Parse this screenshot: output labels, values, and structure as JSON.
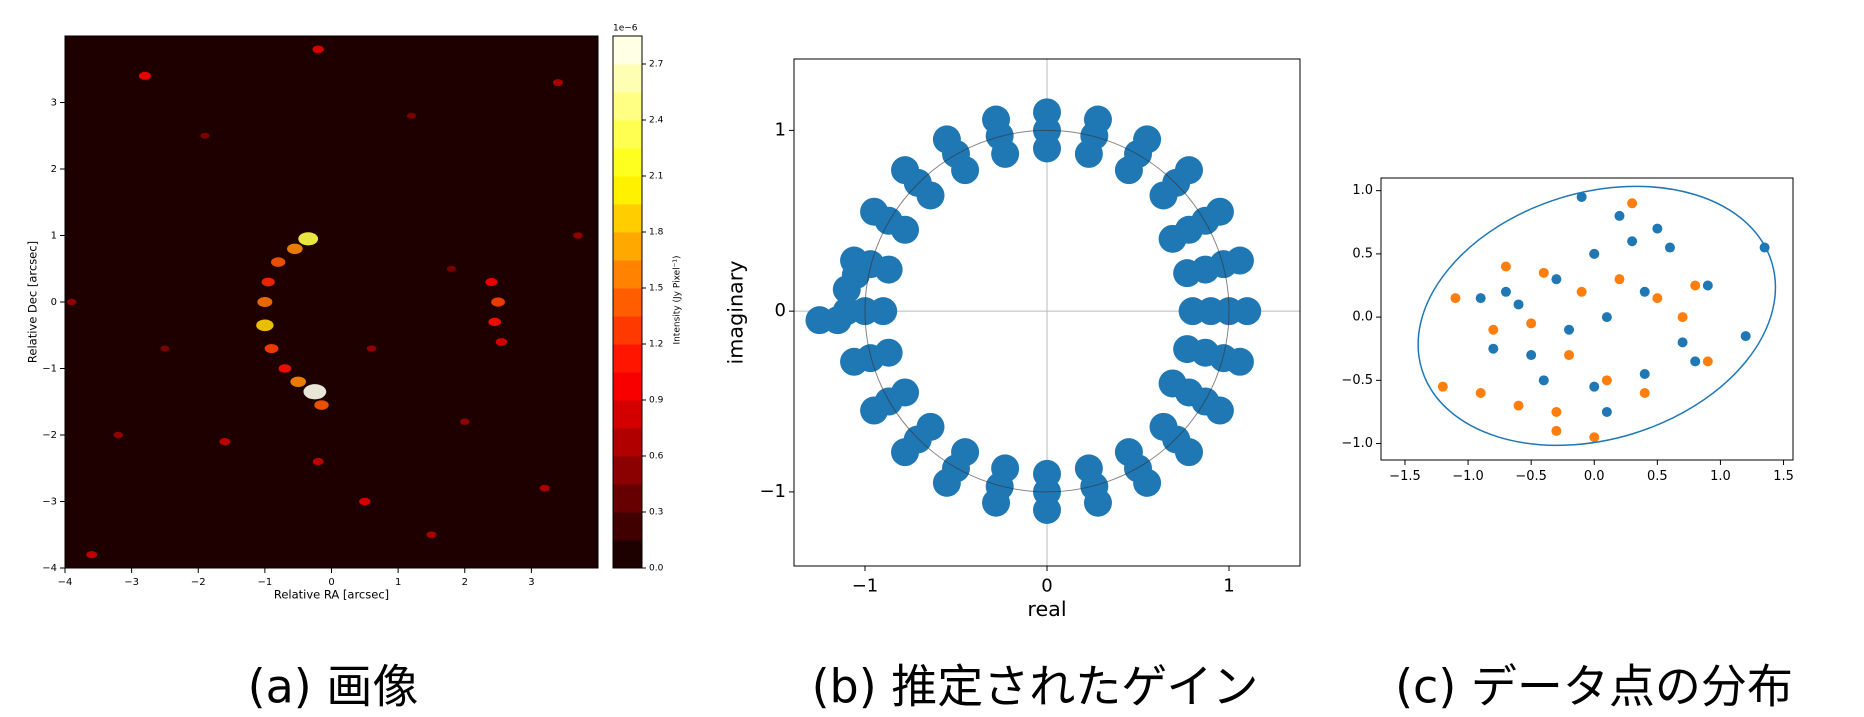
{
  "chart_data": [
    {
      "type": "heatmap",
      "caption": "(a) 画像",
      "xlabel": "Relative RA [arcsec]",
      "ylabel": "Relative Dec [arcsec]",
      "colormap": "hot",
      "xlim": [
        -4,
        4
      ],
      "ylim": [
        -4,
        4
      ],
      "xticks": [
        {
          "value": -4,
          "label": "−4"
        },
        {
          "value": -3,
          "label": "−3"
        },
        {
          "value": -2,
          "label": "−2"
        },
        {
          "value": -1,
          "label": "−1"
        },
        0,
        1,
        2,
        3
      ],
      "yticks": [
        {
          "value": -4,
          "label": "−4"
        },
        {
          "value": -3,
          "label": "−3"
        },
        {
          "value": -2,
          "label": "−2"
        },
        {
          "value": -1,
          "label": "−1"
        },
        0,
        1,
        2,
        3
      ],
      "x": [
        -0.35,
        -0.55,
        -0.8,
        -0.95,
        -1.0,
        -1.0,
        -0.9,
        -0.7,
        -0.5,
        -0.25,
        -0.15,
        2.4,
        2.5,
        2.45,
        2.55,
        -2.8,
        -0.2,
        -1.6,
        0.5,
        -0.2,
        3.2,
        1.5,
        -3.6,
        -3.9,
        3.7,
        1.2,
        2.0,
        -3.2,
        3.4,
        -1.9,
        0.6,
        1.8,
        -2.5
      ],
      "y": [
        0.95,
        0.8,
        0.6,
        0.3,
        0.0,
        -0.35,
        -0.7,
        -1.0,
        -1.2,
        -1.35,
        -1.55,
        0.3,
        0.0,
        -0.3,
        -0.6,
        3.4,
        3.8,
        -2.1,
        -3.0,
        -2.4,
        -2.8,
        -3.5,
        -3.8,
        0.0,
        1.0,
        2.8,
        -1.8,
        -2.0,
        3.3,
        2.5,
        -0.7,
        0.5,
        -0.7
      ],
      "values": [
        2.3,
        1.6,
        1.4,
        1.2,
        1.5,
        1.9,
        1.3,
        1.1,
        1.6,
        2.8,
        1.4,
        1.0,
        1.3,
        1.1,
        0.9,
        1.0,
        0.9,
        0.8,
        0.9,
        0.8,
        0.7,
        0.7,
        0.8,
        0.6,
        0.6,
        0.5,
        0.6,
        0.6,
        0.7,
        0.5,
        0.6,
        0.5,
        0.5
      ],
      "colorbar": {
        "label": "Intensity (Jy Pixel⁻¹)",
        "offset_label": "1e−6",
        "clim": [
          0,
          2.85
        ],
        "ticks": [
          {
            "value": 0,
            "label": "0.0"
          },
          0.3,
          0.6,
          0.9,
          1.2,
          1.5,
          1.8,
          2.1,
          2.4,
          2.7
        ]
      }
    },
    {
      "type": "scatter",
      "caption": "(b) 推定されたゲイン",
      "xlabel": "real",
      "ylabel": "imaginary",
      "zero_lines": true,
      "reference_circle": {
        "x": 0,
        "y": 0,
        "r": 1
      },
      "xlim": [
        -1.39,
        1.39
      ],
      "ylim": [
        -1.41,
        1.395
      ],
      "xticks": [
        {
          "value": -1,
          "label": "−1"
        },
        0,
        1
      ],
      "yticks": [
        {
          "value": -1,
          "label": "−1"
        },
        0,
        1
      ],
      "series": [
        {
          "color": "#1f77b4",
          "x": [
            0.9,
            0.87,
            0.78,
            0.64,
            0.45,
            0.23,
            0,
            -0.23,
            -0.45,
            -0.64,
            -0.78,
            -0.87,
            -0.9,
            -0.87,
            -0.78,
            -0.64,
            -0.45,
            -0.23,
            0,
            0.23,
            0.45,
            0.64,
            0.78,
            0.87,
            1,
            0.97,
            0.87,
            0.71,
            0.5,
            0.26,
            0,
            -0.26,
            -0.5,
            -0.71,
            -0.87,
            -0.97,
            -1,
            -0.97,
            -0.87,
            -0.71,
            -0.5,
            -0.26,
            0,
            0.26,
            0.5,
            0.71,
            0.87,
            0.97,
            1.1,
            1.06,
            0.95,
            0.78,
            0.55,
            0.28,
            0,
            -0.28,
            -0.55,
            -0.78,
            -0.95,
            -1.06,
            -1.1,
            -1.06,
            -0.95,
            -0.78,
            -0.55,
            -0.28,
            0,
            0.28,
            0.55,
            0.78,
            0.95,
            1.06,
            0.8,
            0.77,
            0.77,
            0.69,
            0.69,
            -1.25,
            -1.15,
            -1.1,
            -1.05
          ],
          "y": [
            0,
            0.23,
            0.45,
            0.64,
            0.78,
            0.87,
            0.9,
            0.87,
            0.78,
            0.64,
            0.45,
            0.23,
            0,
            -0.23,
            -0.45,
            -0.64,
            -0.78,
            -0.87,
            -0.9,
            -0.87,
            -0.78,
            -0.64,
            -0.45,
            -0.23,
            0,
            0.26,
            0.5,
            0.71,
            0.87,
            0.97,
            1,
            0.97,
            0.87,
            0.71,
            0.5,
            0.26,
            0,
            -0.26,
            -0.5,
            -0.71,
            -0.87,
            -0.97,
            -1,
            -0.97,
            -0.87,
            -0.71,
            -0.5,
            -0.26,
            0,
            0.28,
            0.55,
            0.78,
            0.95,
            1.06,
            1.1,
            1.06,
            0.95,
            0.78,
            0.55,
            0.28,
            0,
            -0.28,
            -0.55,
            -0.78,
            -0.95,
            -1.06,
            -1.1,
            -1.06,
            -0.95,
            -0.78,
            -0.55,
            -0.28,
            0,
            0.21,
            -0.21,
            0.4,
            -0.4,
            -0.05,
            -0.05,
            0.12,
            0.2
          ]
        }
      ]
    },
    {
      "type": "scatter",
      "caption": "(c) データ点の分布",
      "ellipse": {
        "x": 0.02,
        "y": 0.01,
        "width": 2.9,
        "height": 1.95,
        "angle": 17
      },
      "xlim": [
        -1.69,
        1.575
      ],
      "ylim": [
        -1.13,
        1.1
      ],
      "xticks": [
        {
          "value": -1.5,
          "label": "−1.5"
        },
        {
          "value": -1,
          "label": "−1.0"
        },
        {
          "value": -0.5,
          "label": "−0.5"
        },
        {
          "value": 0,
          "label": "0.0"
        },
        0.5,
        {
          "value": 1,
          "label": "1.0"
        },
        1.5
      ],
      "yticks": [
        {
          "value": -1,
          "label": "−1.0"
        },
        {
          "value": -0.5,
          "label": "−0.5"
        },
        {
          "value": 0,
          "label": "0.0"
        },
        0.5,
        {
          "value": 1,
          "label": "1.0"
        }
      ],
      "series": [
        {
          "color": "#ff7f0e",
          "x": [
            -1.2,
            -0.9,
            -0.6,
            -0.3,
            -0.7,
            -0.4,
            -0.1,
            0.2,
            0.5,
            0.8,
            -0.5,
            -0.2,
            0.1,
            0.4,
            0.7,
            -1.1,
            -0.8,
            -0.3,
            0.0,
            0.3,
            0.9,
            0.0
          ],
          "y": [
            -0.55,
            -0.6,
            -0.7,
            -0.75,
            0.4,
            0.35,
            0.2,
            0.3,
            0.15,
            0.25,
            -0.05,
            -0.3,
            -0.5,
            -0.6,
            0.0,
            0.15,
            -0.1,
            -0.9,
            -0.95,
            0.9,
            -0.35,
            0.5
          ]
        },
        {
          "color": "#1f77b4",
          "x": [
            -0.9,
            -0.6,
            -0.3,
            0,
            0.3,
            0.6,
            0.9,
            1.2,
            -0.5,
            -0.2,
            0.1,
            0.4,
            0.7,
            -0.8,
            -0.4,
            0.0,
            0.4,
            0.8,
            1.35,
            -0.1,
            0.2,
            0.5,
            -0.7,
            0.1
          ],
          "y": [
            0.15,
            0.1,
            0.3,
            0.5,
            0.6,
            0.55,
            0.25,
            -0.15,
            -0.3,
            -0.1,
            0.0,
            0.2,
            -0.2,
            -0.25,
            -0.5,
            -0.55,
            -0.45,
            -0.35,
            0.55,
            0.95,
            0.8,
            0.7,
            0.2,
            -0.75
          ]
        }
      ]
    }
  ]
}
